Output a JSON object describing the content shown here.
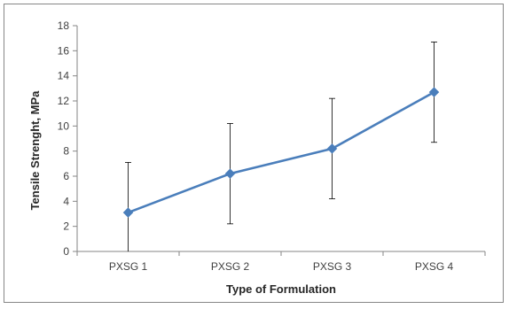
{
  "chart_data": {
    "type": "line",
    "title": "",
    "xlabel": "Type of Formulation",
    "ylabel": "Tensile Strenght, MPa",
    "categories": [
      "PXSG 1",
      "PXSG 2",
      "PXSG 3",
      "PXSG 4"
    ],
    "series": [
      {
        "values": [
          3.1,
          6.2,
          8.2,
          12.7
        ],
        "error_bars": [
          4.0,
          4.0,
          4.0,
          4.0
        ],
        "color": "#4a7ebb",
        "marker": "diamond"
      }
    ],
    "ylim": [
      0,
      18
    ],
    "yticks": [
      0,
      2,
      4,
      6,
      8,
      10,
      12,
      14,
      16,
      18
    ],
    "grid": false,
    "legend": "none"
  }
}
